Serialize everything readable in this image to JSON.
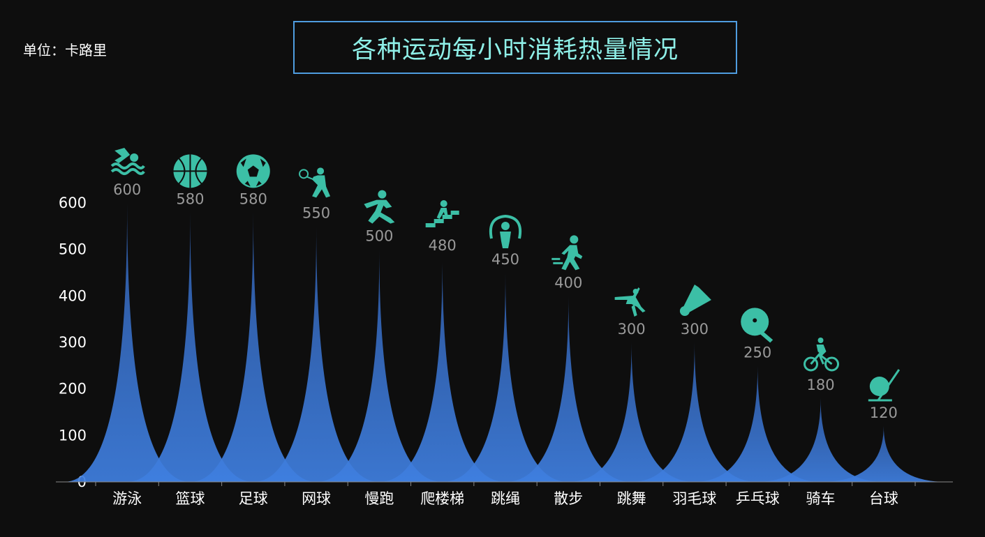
{
  "unit_label": "单位：卡路里",
  "colors": {
    "background": "#0e0e0e",
    "spike_top": "#2f5ba6",
    "spike_bottom": "#3f7fe0",
    "icon": "#3cbfa6",
    "title": "#8ff0e8",
    "title_border": "#4f9de0"
  },
  "chart_data": {
    "type": "bar",
    "title": "各种运动每小时消耗热量情况",
    "bar_shape": "pictorial-spike",
    "categories": [
      "游泳",
      "篮球",
      "足球",
      "网球",
      "慢跑",
      "爬楼梯",
      "跳绳",
      "散步",
      "跳舞",
      "羽毛球",
      "乒乓球",
      "骑车",
      "台球"
    ],
    "values": [
      600,
      580,
      580,
      550,
      500,
      480,
      450,
      400,
      300,
      300,
      250,
      180,
      120
    ],
    "icons": [
      "swimming-icon",
      "basketball-icon",
      "soccer-ball-icon",
      "tennis-icon",
      "running-icon",
      "stairs-icon",
      "jump-rope-icon",
      "walking-icon",
      "dancing-icon",
      "shuttlecock-icon",
      "ping-pong-icon",
      "cycling-icon",
      "billiards-icon"
    ],
    "ylim": [
      0,
      600
    ],
    "yticks": [
      0,
      100,
      200,
      300,
      400,
      500,
      600
    ],
    "grid": false,
    "legend": "none"
  }
}
